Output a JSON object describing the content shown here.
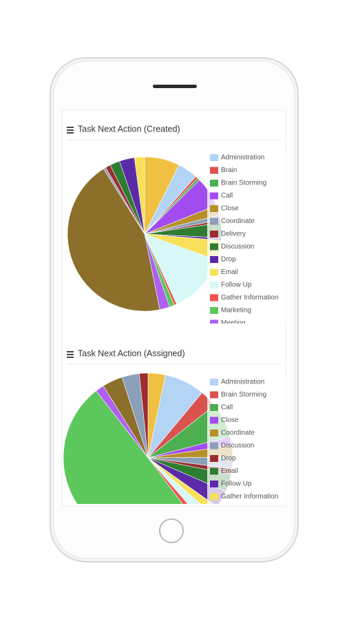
{
  "chart_data": [
    {
      "type": "pie",
      "title": "Task Next Action (Created)",
      "categories": [
        null,
        "Administration",
        "Brain",
        "Brain Storming",
        "Call",
        "Close",
        "Coordinate",
        "Delivery",
        "Discussion",
        "Drop",
        "Email",
        "Follow Up",
        "Gather Information",
        "Marketing",
        "Meeting",
        null,
        null,
        null,
        null,
        null,
        null
      ],
      "values": [
        7,
        4,
        0.5,
        0.5,
        6,
        2,
        1,
        0.5,
        3,
        0.5,
        4,
        12,
        0.5,
        1,
        2,
        42,
        0.5,
        1,
        2,
        3,
        2
      ],
      "colors": [
        "#f0c040",
        "#b3d4f5",
        "#d9534f",
        "#4caf50",
        "#a24cf0",
        "#b8902a",
        "#8aa0b8",
        "#9b2d30",
        "#2e7d32",
        "#5b2aa8",
        "#f7e15a",
        "#d8f8f8",
        "#ef5350",
        "#5cc85c",
        "#b060f0",
        "#8b6f2a",
        "#8aa0b8",
        "#9b2d30",
        "#2e7d32",
        "#5b2aa8",
        "#f7e15a"
      ]
    },
    {
      "type": "pie",
      "title": "Task Next Action (Assigned)",
      "categories": [
        null,
        "Administration",
        "Brain Storming",
        "Call",
        "Close",
        "Coordinate",
        "Discussion",
        "Drop",
        "Email",
        "Follow Up",
        "Gather Information",
        null,
        null,
        null,
        null,
        null,
        null,
        null
      ],
      "values": [
        3,
        7,
        3,
        6,
        1.5,
        2,
        2,
        1,
        3,
        3,
        1.5,
        2,
        1,
        45,
        1.5,
        3.5,
        3,
        1.5
      ],
      "colors": [
        "#f0c040",
        "#b3d4f5",
        "#d9534f",
        "#4caf50",
        "#a24cf0",
        "#b8902a",
        "#8aa0b8",
        "#9b2d30",
        "#2e7d32",
        "#5b2aa8",
        "#f7e15a",
        "#d8f8f8",
        "#ef5350",
        "#5cc85c",
        "#b060f0",
        "#8b6f2a",
        "#8aa0b8",
        "#9b2d30"
      ]
    }
  ]
}
